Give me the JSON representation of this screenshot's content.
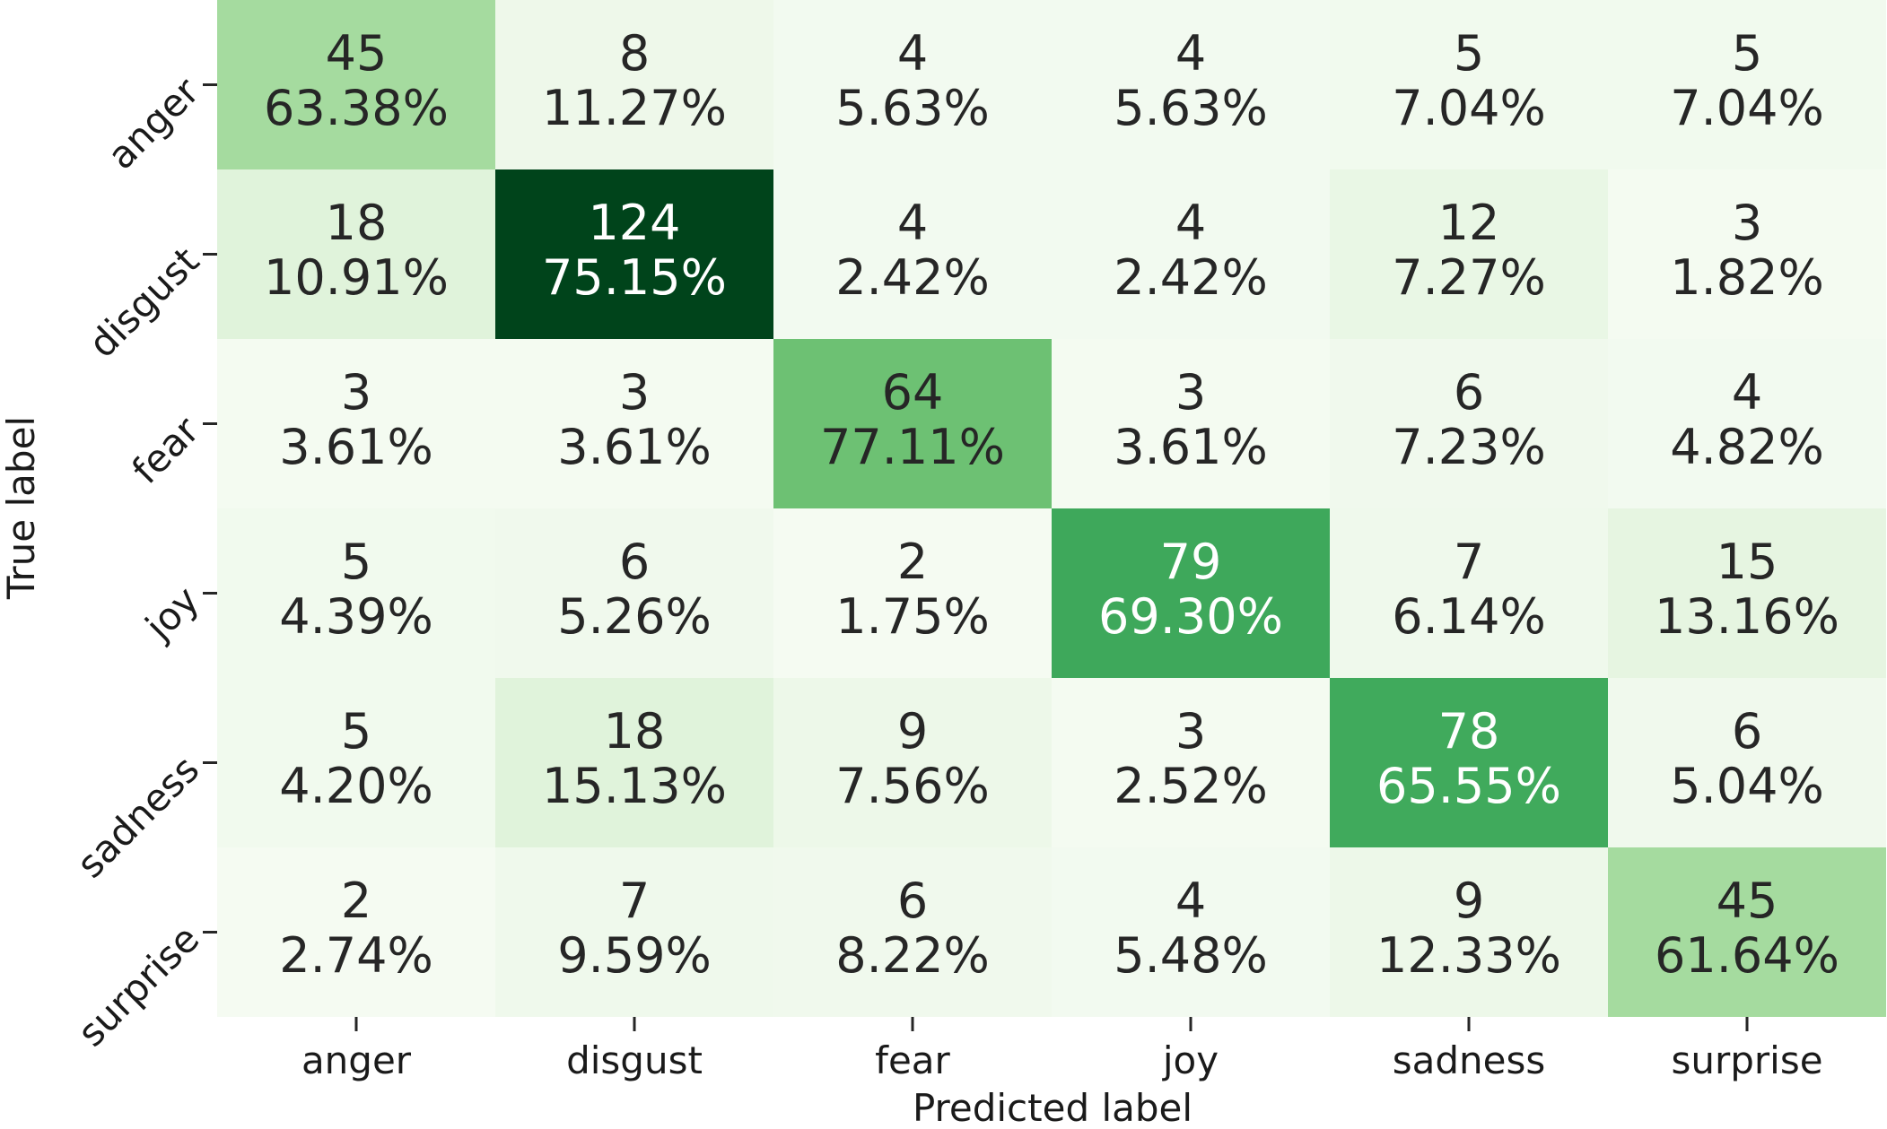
{
  "chart_data": {
    "type": "heatmap",
    "title": "",
    "xlabel": "Predicted label",
    "ylabel": "True label",
    "x_categories": [
      "anger",
      "disgust",
      "fear",
      "joy",
      "sadness",
      "surprise"
    ],
    "y_categories": [
      "anger",
      "disgust",
      "fear",
      "joy",
      "sadness",
      "surprise"
    ],
    "counts": [
      [
        45,
        8,
        4,
        4,
        5,
        5
      ],
      [
        18,
        124,
        4,
        4,
        12,
        3
      ],
      [
        3,
        3,
        64,
        3,
        6,
        4
      ],
      [
        5,
        6,
        2,
        79,
        7,
        15
      ],
      [
        5,
        18,
        9,
        3,
        78,
        6
      ],
      [
        2,
        7,
        6,
        4,
        9,
        45
      ]
    ],
    "percentages": [
      [
        "63.38%",
        "11.27%",
        "5.63%",
        "5.63%",
        "7.04%",
        "7.04%"
      ],
      [
        "10.91%",
        "75.15%",
        "2.42%",
        "2.42%",
        "7.27%",
        "1.82%"
      ],
      [
        "3.61%",
        "3.61%",
        "77.11%",
        "3.61%",
        "7.23%",
        "4.82%"
      ],
      [
        "4.39%",
        "5.26%",
        "1.75%",
        "69.30%",
        "6.14%",
        "13.16%"
      ],
      [
        "4.20%",
        "15.13%",
        "7.56%",
        "2.52%",
        "65.55%",
        "5.04%"
      ],
      [
        "2.74%",
        "9.59%",
        "8.22%",
        "5.48%",
        "12.33%",
        "61.64%"
      ]
    ],
    "colormap": "Greens",
    "color_min": 0,
    "color_max": 124,
    "grid": false,
    "colorbar": false
  }
}
